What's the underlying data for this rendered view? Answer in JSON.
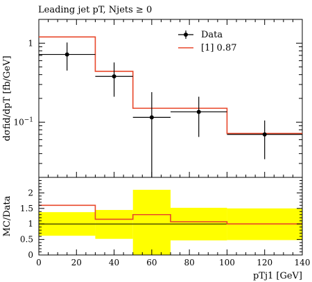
{
  "chart_data": [
    {
      "type": "line",
      "title": "Leading jet pT, Njets ≥ 0",
      "ylabel": "dσfid/dpT [fb/GeV]",
      "y_scale": "log",
      "ylim": [
        0.02,
        2.0
      ],
      "xlim": [
        0,
        140
      ],
      "y_ticks": [
        {
          "value": 1,
          "label": "1"
        },
        {
          "value": 0.1,
          "label": "10−1"
        }
      ],
      "legend_position": "top-right",
      "series": [
        {
          "name": "Data",
          "style": "points-with-errorbars",
          "color": "#000000",
          "points": [
            {
              "x": 15,
              "xerr": [
                0,
                30
              ],
              "y": 0.72,
              "yerr": [
                0.45,
                1.02
              ]
            },
            {
              "x": 40,
              "xerr": [
                30,
                50
              ],
              "y": 0.38,
              "yerr": [
                0.21,
                0.57
              ]
            },
            {
              "x": 60,
              "xerr": [
                50,
                70
              ],
              "y": 0.115,
              "yerr": [
                0.02,
                0.24
              ]
            },
            {
              "x": 85,
              "xerr": [
                70,
                100
              ],
              "y": 0.135,
              "yerr": [
                0.065,
                0.21
              ]
            },
            {
              "x": 120,
              "xerr": [
                100,
                140
              ],
              "y": 0.07,
              "yerr": [
                0.034,
                0.105
              ]
            }
          ]
        },
        {
          "name": "[1] 0.87",
          "style": "step",
          "color": "#e8472a",
          "bins": [
            {
              "x0": 0,
              "x1": 30,
              "y": 1.2
            },
            {
              "x0": 30,
              "x1": 50,
              "y": 0.44
            },
            {
              "x0": 50,
              "x1": 100,
              "y": 0.15
            },
            {
              "x0": 100,
              "x1": 140,
              "y": 0.072
            }
          ]
        }
      ]
    },
    {
      "type": "line",
      "ylabel": "MC/Data",
      "xlabel": "pTj1 [GeV]",
      "xlim": [
        0,
        140
      ],
      "ylim": [
        0,
        2.5
      ],
      "x_ticks": [
        0,
        20,
        40,
        60,
        80,
        100,
        120,
        140
      ],
      "y_ticks": [
        0,
        0.5,
        1,
        1.5,
        2
      ],
      "uncertainty_band": {
        "color": "#ffff00",
        "bins": [
          {
            "x0": 0,
            "x1": 30,
            "low": 0.62,
            "high": 1.38
          },
          {
            "x0": 30,
            "x1": 50,
            "low": 0.52,
            "high": 1.45
          },
          {
            "x0": 50,
            "x1": 70,
            "low": 0.0,
            "high": 2.1
          },
          {
            "x0": 70,
            "x1": 100,
            "low": 0.47,
            "high": 1.52
          },
          {
            "x0": 100,
            "x1": 140,
            "low": 0.48,
            "high": 1.5
          }
        ]
      },
      "series": [
        {
          "name": "[1] 0.87",
          "style": "step",
          "color": "#e8472a",
          "bins": [
            {
              "x0": 0,
              "x1": 30,
              "y": 1.6
            },
            {
              "x0": 30,
              "x1": 50,
              "y": 1.15
            },
            {
              "x0": 50,
              "x1": 70,
              "y": 1.3
            },
            {
              "x0": 70,
              "x1": 100,
              "y": 1.07
            },
            {
              "x0": 100,
              "x1": 140,
              "y": 1.0
            }
          ]
        },
        {
          "name": "Data",
          "style": "reference-line",
          "color": "#000000",
          "y": 1.0
        }
      ]
    }
  ]
}
